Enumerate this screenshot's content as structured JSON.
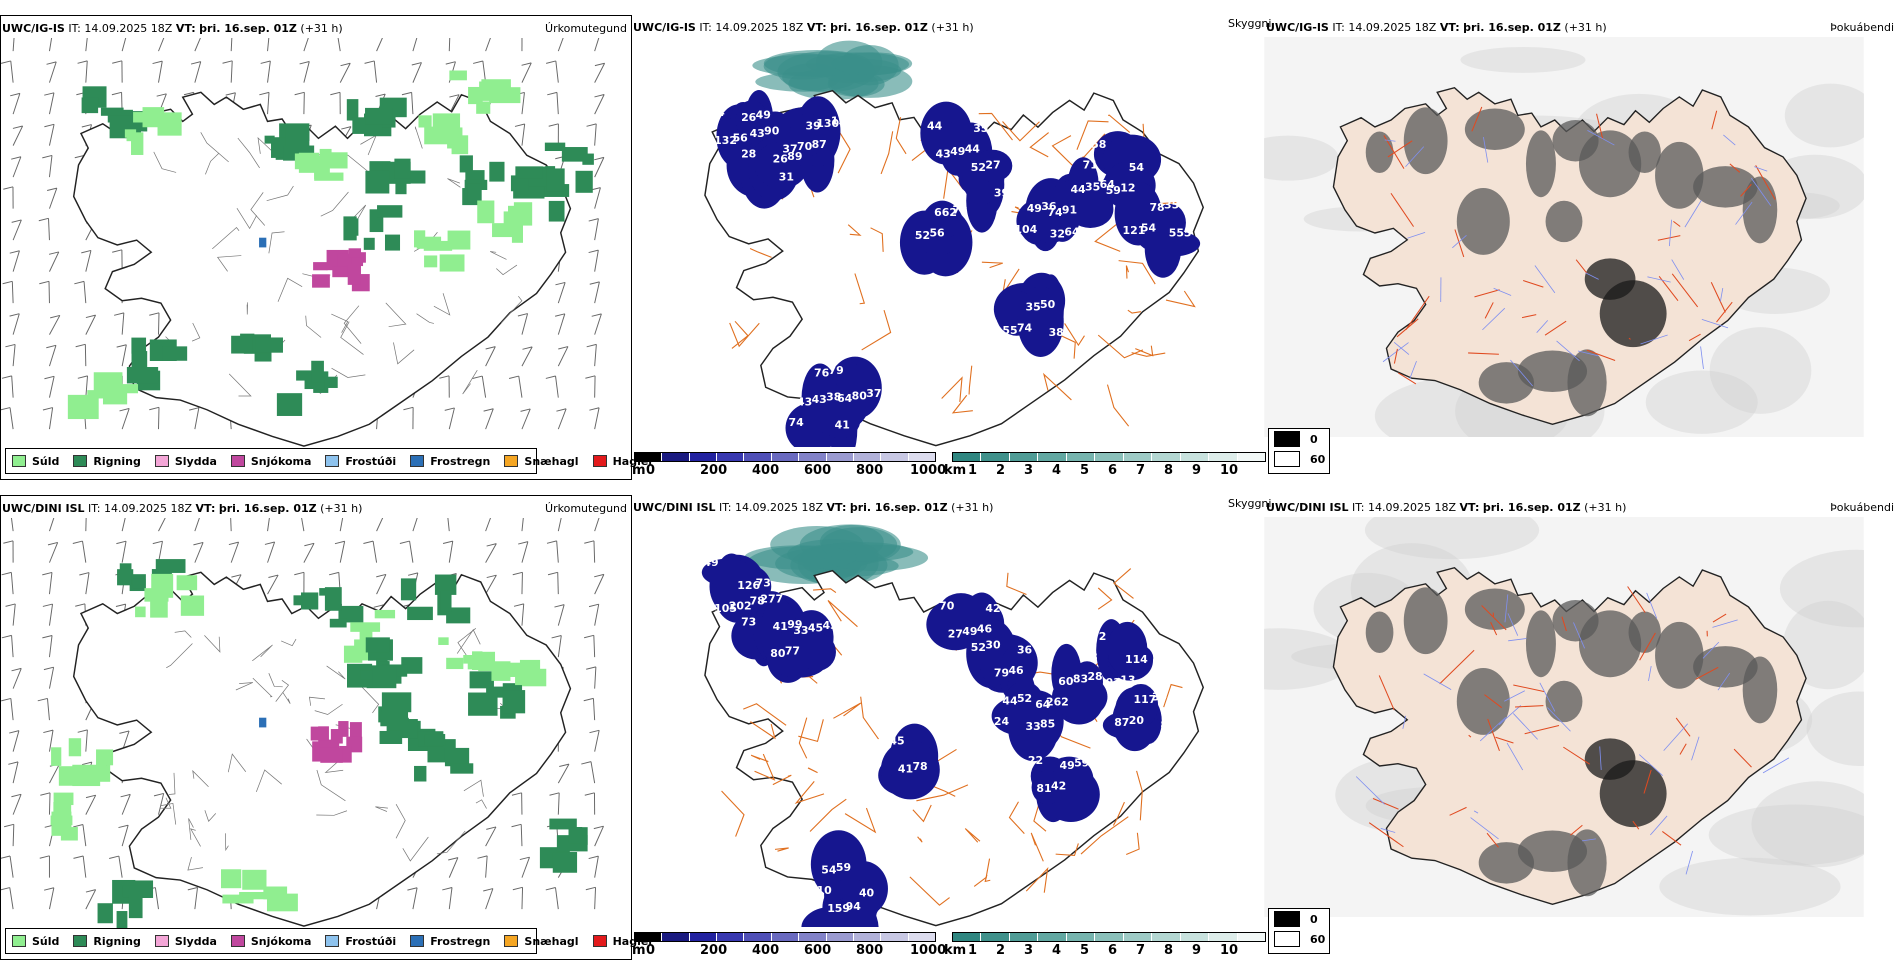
{
  "colors": {
    "suld": "#90ee90",
    "rigning": "#2e8b57",
    "slydda": "#f4a6d7",
    "snjokoma": "#c0479e",
    "frostudi": "#8ec3ee",
    "frostregn": "#2b6fb6",
    "snaehagl": "#f5a623",
    "haglel": "#e31a1c",
    "cloud_navy": "#16168f",
    "cloud_teal": "#3a8f8a",
    "road": "#e07020",
    "land_beige": "#f4e3d6"
  },
  "rows": [
    {
      "model": "UWC/IG-IS",
      "it_label": "IT:",
      "it_value": "14.09.2025 18Z",
      "vt_label": "VT:",
      "vt_value": "þri. 16.sep. 01Z",
      "lead": "(+31 h)",
      "precip_title": "Úrkomutegund",
      "cloud_title": "Skyggni",
      "sun_title": "Þokuábendi",
      "cloud_numbers": [
        "38",
        "26",
        "39",
        "43",
        "52",
        "32",
        "44",
        "58",
        "555",
        "662",
        "64",
        "43",
        "38",
        "26",
        "43",
        "37",
        "35",
        "39",
        "49",
        "74",
        "54",
        "78",
        "52",
        "76",
        "41",
        "35",
        "132",
        "89",
        "130",
        "49",
        "52",
        "64",
        "35",
        "59",
        "121",
        "73",
        "80",
        "43",
        "55",
        "49",
        "90",
        "70",
        "44",
        "44",
        "36",
        "91",
        "71",
        "35",
        "56",
        "79",
        "74",
        "50",
        "56",
        "28",
        "136",
        "44",
        "27",
        "104",
        "64",
        "12",
        "54",
        "35",
        "37",
        "38",
        "74",
        "24",
        "31",
        "87"
      ]
    },
    {
      "model": "UWC/DINI ISL",
      "it_label": "IT:",
      "it_value": "14.09.2025 18Z",
      "vt_label": "VT:",
      "vt_value": "þri. 16.sep. 01Z",
      "lead": "(+31 h)",
      "precip_title": "Úrkomutegund",
      "cloud_title": "Skyggni",
      "sun_title": "Þokuábendi",
      "cloud_numbers": [
        "49",
        "41",
        "33",
        "27",
        "36",
        "33",
        "60",
        "72",
        "80",
        "49",
        "41",
        "54",
        "50",
        "126",
        "78",
        "80",
        "42",
        "79",
        "44",
        "64",
        "114",
        "117",
        "81",
        "65",
        "40",
        "159",
        "105",
        "99",
        "45",
        "49",
        "52",
        "85",
        "83",
        "93",
        "87",
        "59",
        "78",
        "59",
        "108",
        "73",
        "277",
        "77",
        "70",
        "46",
        "52",
        "262",
        "63",
        "39",
        "42",
        "45",
        "110",
        "94",
        "202",
        "73",
        "43",
        "46",
        "30",
        "24",
        "28",
        "13",
        "20",
        "22"
      ]
    }
  ],
  "precip_legend": [
    {
      "label": "Súld",
      "color": "#90ee90"
    },
    {
      "label": "Rigning",
      "color": "#2e8b57"
    },
    {
      "label": "Slydda",
      "color": "#f4a6d7"
    },
    {
      "label": "Snjókoma",
      "color": "#c0479e"
    },
    {
      "label": "Frostúði",
      "color": "#8ec3ee"
    },
    {
      "label": "Frostregn",
      "color": "#2b6fb6"
    },
    {
      "label": "Snæhagl",
      "color": "#f5a623"
    },
    {
      "label": "Haglél",
      "color": "#e31a1c"
    }
  ],
  "m_bar": {
    "unit": "m",
    "ticks": [
      "0",
      "200",
      "400",
      "600",
      "800",
      "1000"
    ],
    "colors": [
      "#000000",
      "#1a1a80",
      "#2222a0",
      "#3838b0",
      "#5050b8",
      "#6a6ac0",
      "#8282c8",
      "#9a9ad0",
      "#b2b2da",
      "#c8c8e4",
      "#dcdcee"
    ]
  },
  "km_bar": {
    "unit": "km",
    "ticks": [
      "1",
      "2",
      "3",
      "4",
      "5",
      "6",
      "7",
      "8",
      "9",
      "10"
    ],
    "colors": [
      "#2f8680",
      "#3f918b",
      "#4f9c96",
      "#62a8a2",
      "#76b4ae",
      "#8ac0ba",
      "#9ecbc6",
      "#b3d7d2",
      "#c8e2de",
      "#ddedea",
      "#f2f8f7"
    ]
  },
  "sun_key": {
    "dark_label": "0",
    "light_label": "60"
  }
}
